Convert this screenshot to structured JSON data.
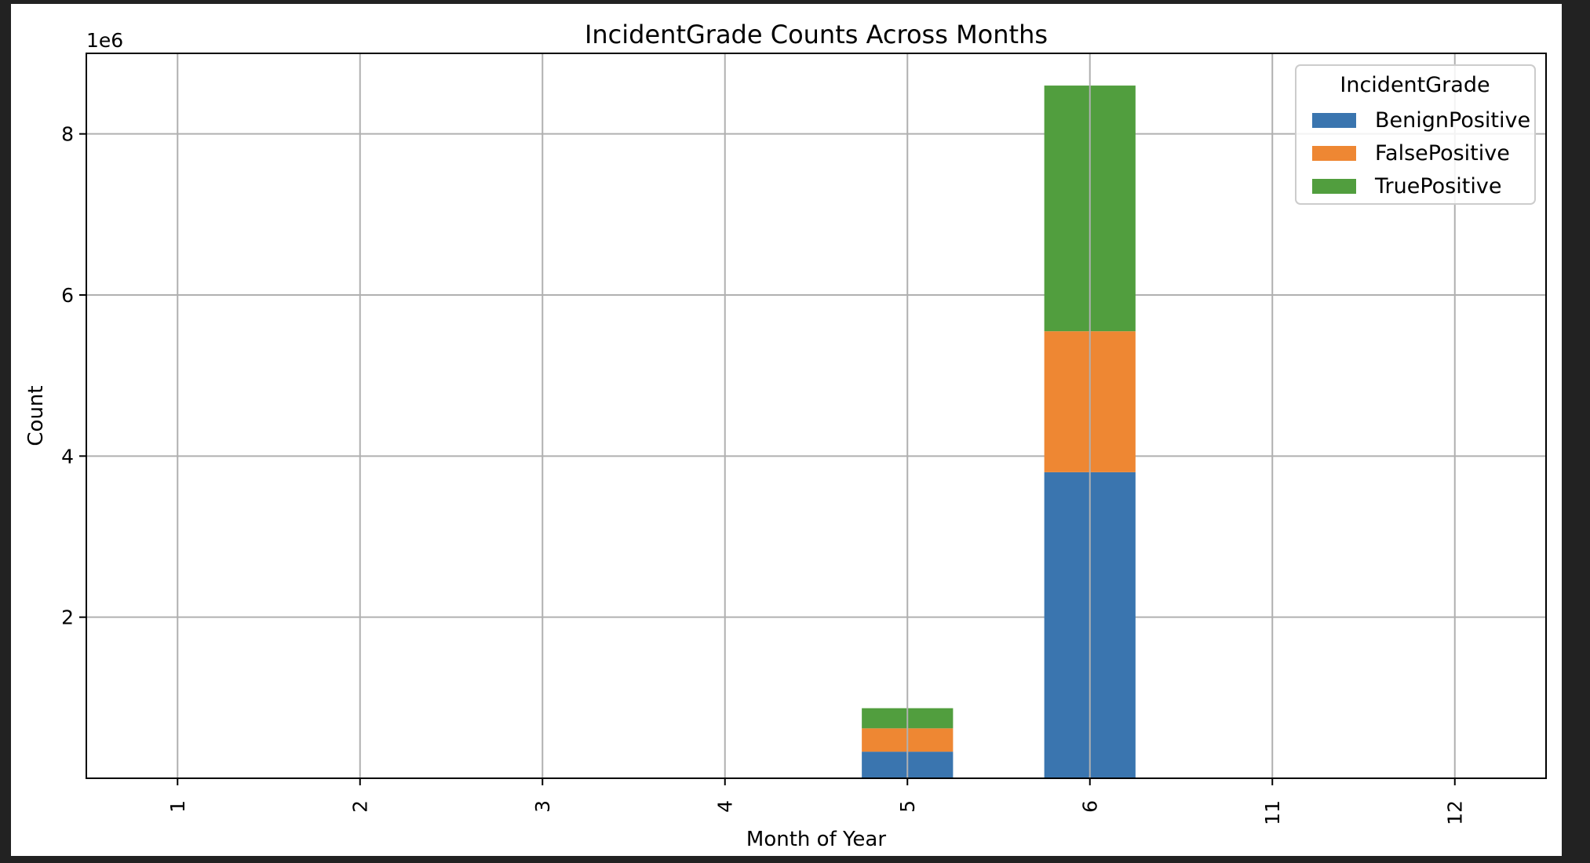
{
  "chart_data": {
    "type": "bar",
    "stacked": true,
    "title": "IncidentGrade Counts Across Months",
    "xlabel": "Month of Year",
    "ylabel": "Count",
    "y_scale_label": "1e6",
    "categories": [
      "1",
      "2",
      "3",
      "4",
      "5",
      "6",
      "11",
      "12"
    ],
    "yticks": [
      2,
      4,
      6,
      8
    ],
    "ylim": [
      0,
      9.0
    ],
    "grid": true,
    "legend": {
      "title": "IncidentGrade",
      "placement": "top-right"
    },
    "series": [
      {
        "name": "BenignPositive",
        "color": "#3a75af",
        "values": [
          0,
          0,
          0,
          0,
          0.33,
          3.8,
          0,
          0
        ]
      },
      {
        "name": "FalsePositive",
        "color": "#ee8733",
        "values": [
          0,
          0,
          0,
          0,
          0.29,
          1.75,
          0,
          0
        ]
      },
      {
        "name": "TruePositive",
        "color": "#519e3e",
        "values": [
          0,
          0,
          0,
          0,
          0.25,
          3.05,
          0,
          0
        ]
      }
    ]
  }
}
